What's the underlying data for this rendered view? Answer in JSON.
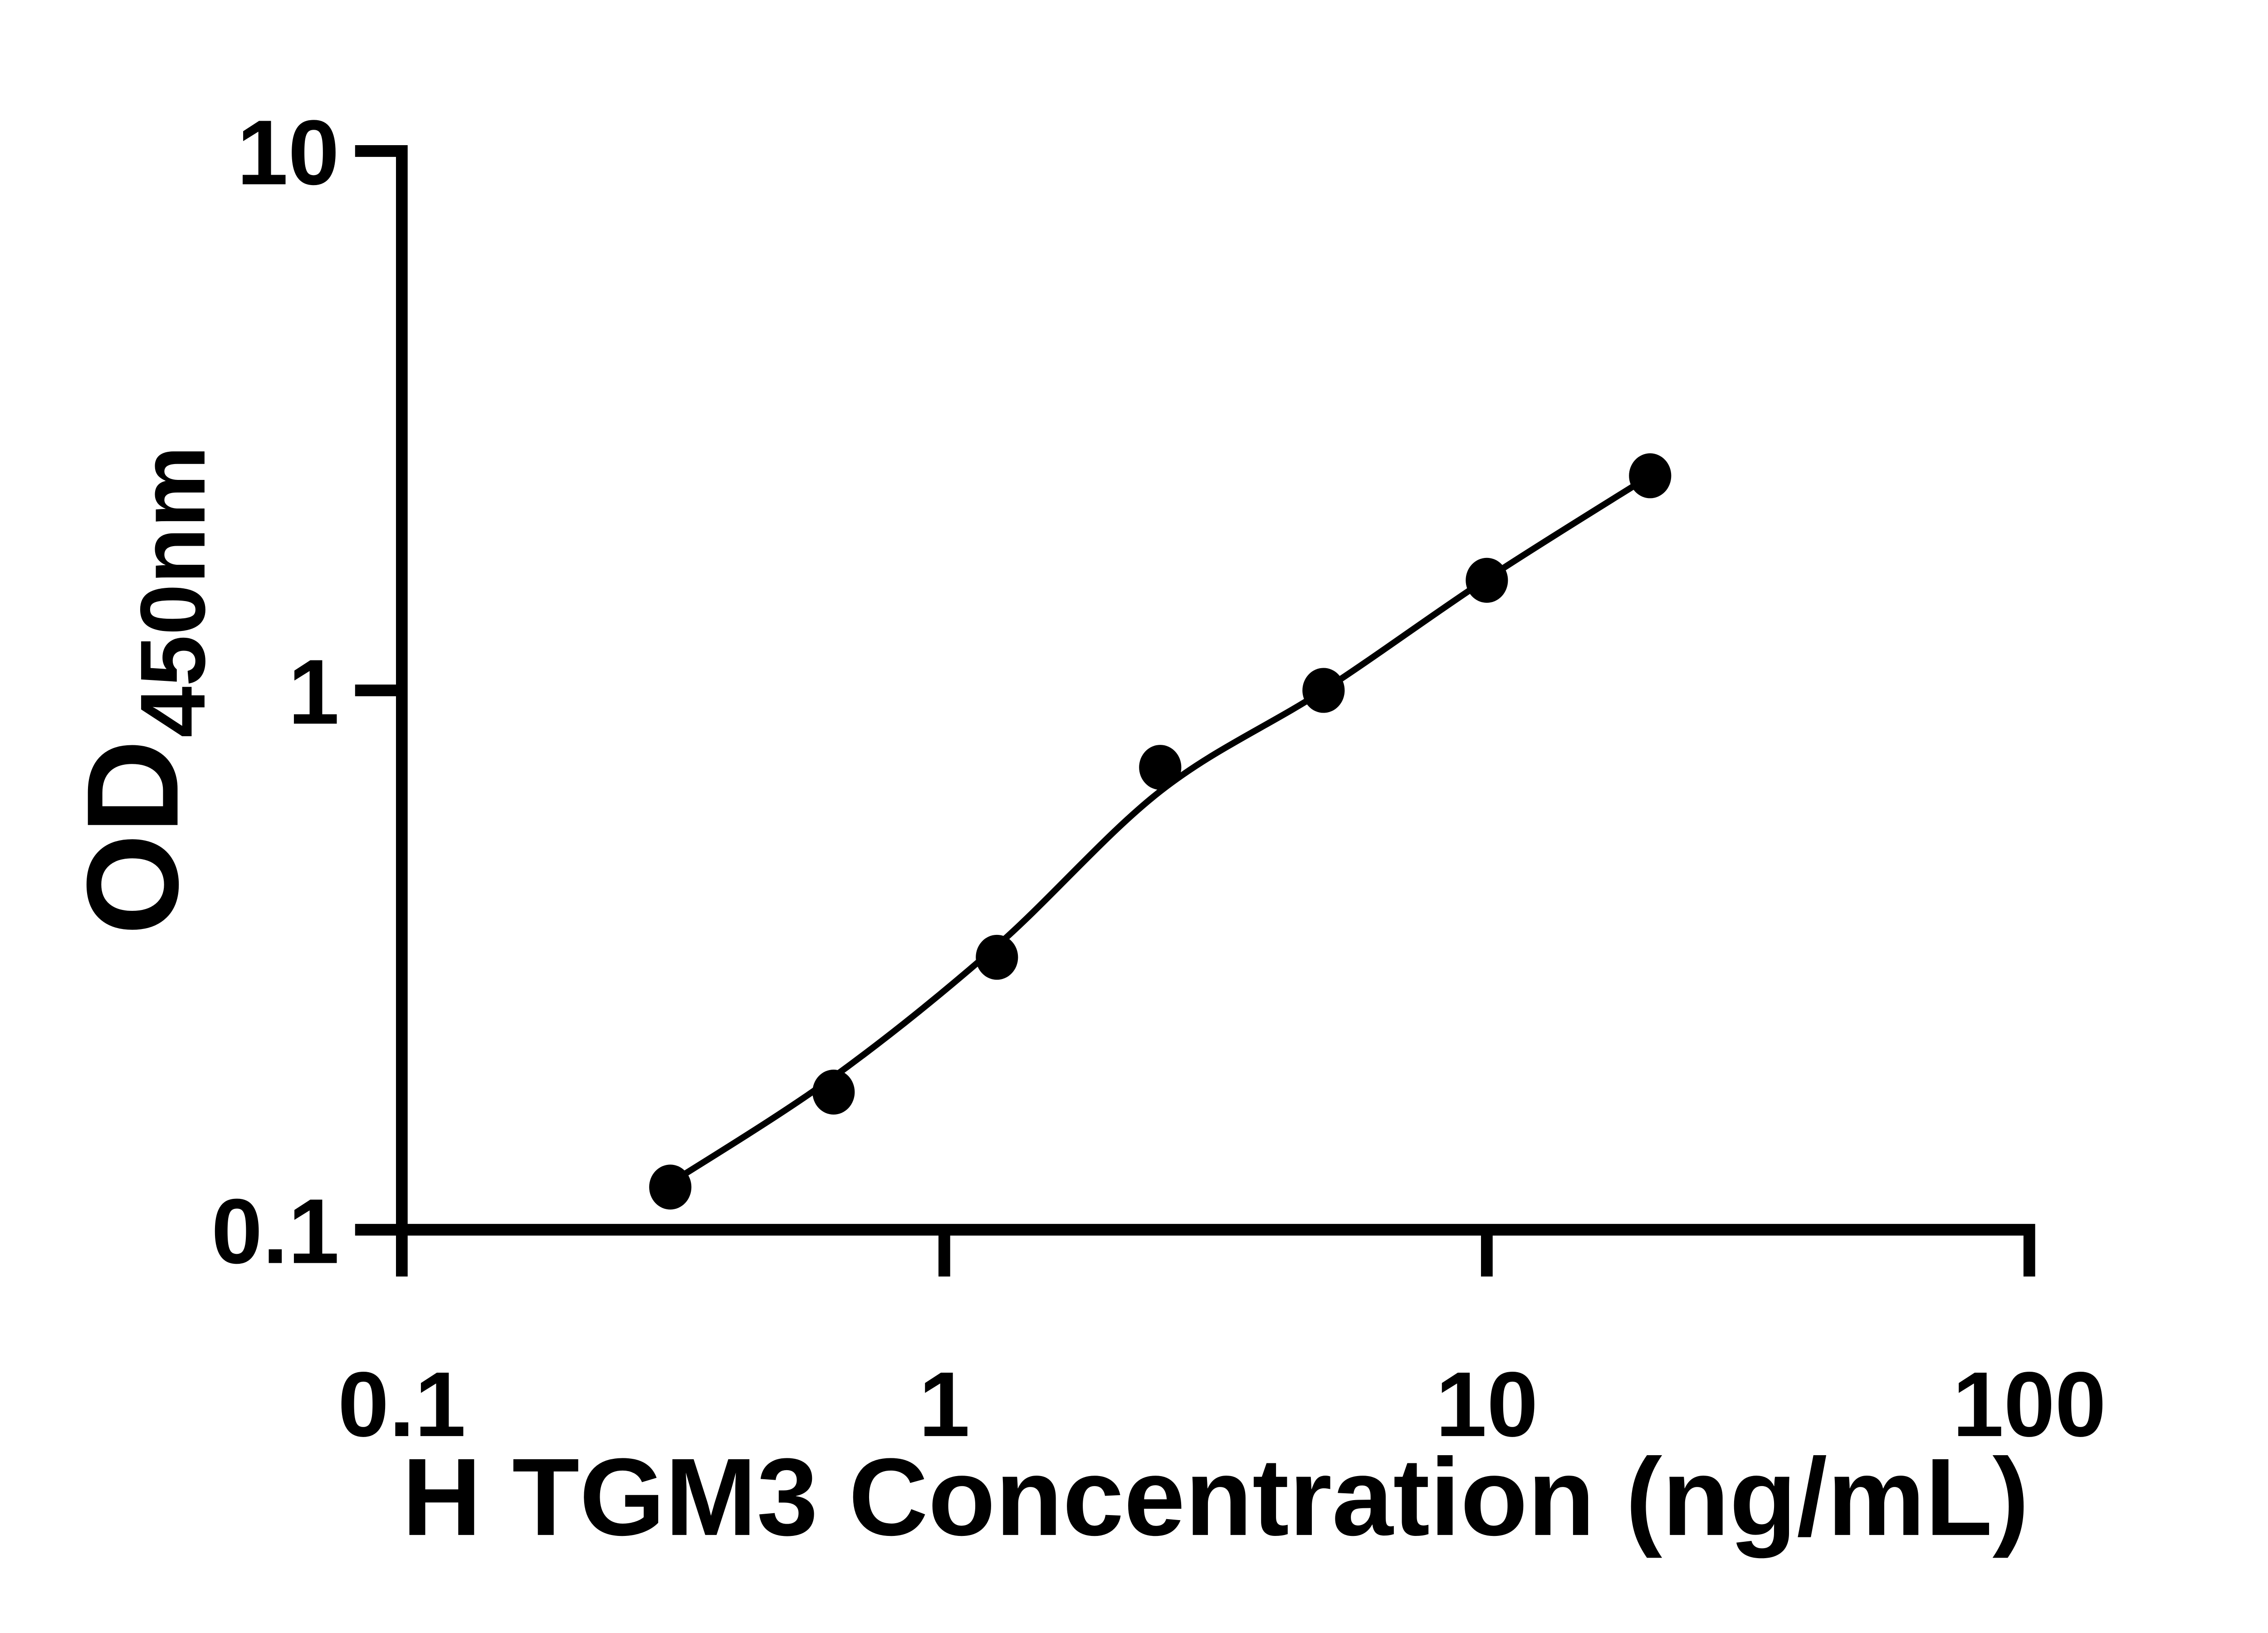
{
  "background_color": "#ffffff",
  "foreground_color": "#000000",
  "chart_data": {
    "type": "scatter",
    "subtype": "standard-curve-with-fit-line",
    "title": "",
    "xlabel": "H TGM3 Concentration (ng/mL)",
    "ylabel_main": "OD",
    "ylabel_sub": "450nm",
    "x_scale": "log10",
    "y_scale": "log10",
    "xlim": [
      0.1,
      100
    ],
    "ylim": [
      0.1,
      10
    ],
    "grid": "off",
    "legend": "none",
    "x_ticks": [
      {
        "value": 0.1,
        "label": "0.1"
      },
      {
        "value": 1,
        "label": "1"
      },
      {
        "value": 10,
        "label": "10"
      },
      {
        "value": 100,
        "label": "100"
      }
    ],
    "y_ticks": [
      {
        "value": 0.1,
        "label": "0.1"
      },
      {
        "value": 1,
        "label": "1"
      },
      {
        "value": 10,
        "label": "10"
      }
    ],
    "points": [
      {
        "x": 0.3125,
        "y": 0.12
      },
      {
        "x": 0.625,
        "y": 0.18
      },
      {
        "x": 1.25,
        "y": 0.32
      },
      {
        "x": 2.5,
        "y": 0.72
      },
      {
        "x": 5,
        "y": 1.0
      },
      {
        "x": 10,
        "y": 1.6
      },
      {
        "x": 20,
        "y": 2.5
      }
    ],
    "fit_curve_points": [
      {
        "x": 0.3125,
        "y": 0.122
      },
      {
        "x": 0.625,
        "y": 0.192
      },
      {
        "x": 1.25,
        "y": 0.336
      },
      {
        "x": 2.5,
        "y": 0.65
      },
      {
        "x": 5,
        "y": 1.0
      },
      {
        "x": 10,
        "y": 1.61
      },
      {
        "x": 20,
        "y": 2.5
      }
    ],
    "marker": {
      "shape": "ellipse",
      "color": "#000000"
    },
    "line": {
      "color": "#000000"
    },
    "axis_color": "#000000"
  }
}
